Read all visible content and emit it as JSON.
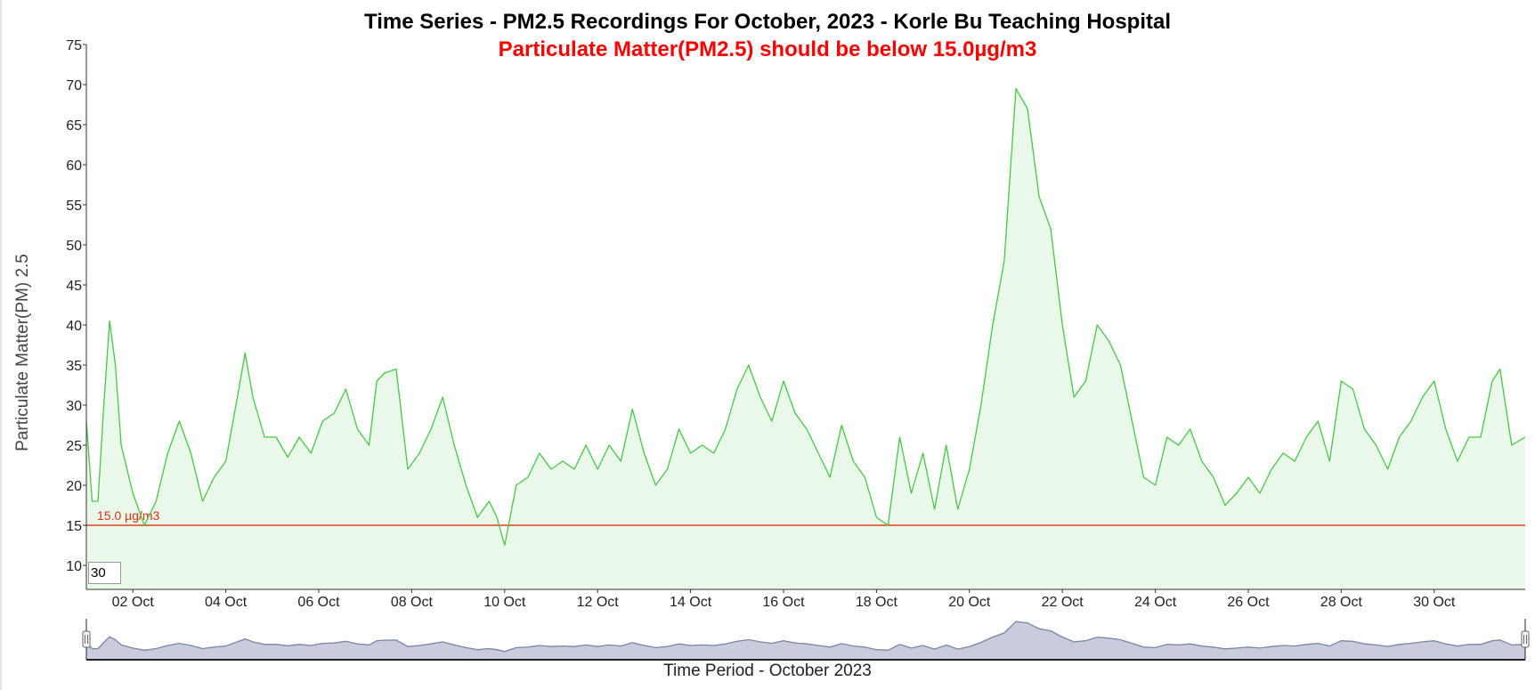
{
  "title": "Time Series - PM2.5 Recordings For October, 2023 - Korle Bu Teaching Hospital",
  "subtitle": "Particulate Matter(PM2.5) should be below 15.0µg/m3",
  "roll_period_value": "30",
  "colors": {
    "line": "#44c944",
    "fill": "#e9f8e9",
    "reference": "#e0401a",
    "subtitle": "#ff0000",
    "navigator_fill": "#c8ccdc",
    "navigator_line": "#7a86a8"
  },
  "chart_data": {
    "type": "area",
    "xlabel": "Time Period - October 2023",
    "ylabel": "Particulate Matter(PM) 2.5",
    "ylim": [
      7,
      75
    ],
    "xlim": [
      "2023-10-01 00:00",
      "2023-10-31 23:00"
    ],
    "yticks": [
      10,
      15,
      20,
      25,
      30,
      35,
      40,
      45,
      50,
      55,
      60,
      65,
      70,
      75
    ],
    "xticks": [
      "02 Oct",
      "04 Oct",
      "06 Oct",
      "08 Oct",
      "10 Oct",
      "12 Oct",
      "14 Oct",
      "16 Oct",
      "18 Oct",
      "20 Oct",
      "22 Oct",
      "24 Oct",
      "26 Oct",
      "28 Oct",
      "30 Oct"
    ],
    "xtick_dates": [
      "2023-10-02",
      "2023-10-04",
      "2023-10-06",
      "2023-10-08",
      "2023-10-10",
      "2023-10-12",
      "2023-10-14",
      "2023-10-16",
      "2023-10-18",
      "2023-10-20",
      "2023-10-22",
      "2023-10-24",
      "2023-10-26",
      "2023-10-28",
      "2023-10-30"
    ],
    "reference_line": {
      "value": 15.0,
      "label": "15.0 µg/m3"
    },
    "grid": false,
    "series": [
      {
        "values": [
          [
            "2023-10-01 00:00",
            28
          ],
          [
            "2023-10-01 03:00",
            18
          ],
          [
            "2023-10-01 06:00",
            18
          ],
          [
            "2023-10-01 09:00",
            30
          ],
          [
            "2023-10-01 12:00",
            40.5
          ],
          [
            "2023-10-01 15:00",
            35
          ],
          [
            "2023-10-01 18:00",
            25
          ],
          [
            "2023-10-02 00:00",
            19
          ],
          [
            "2023-10-02 06:00",
            15
          ],
          [
            "2023-10-02 12:00",
            18
          ],
          [
            "2023-10-02 18:00",
            24
          ],
          [
            "2023-10-03 00:00",
            28
          ],
          [
            "2023-10-03 06:00",
            24
          ],
          [
            "2023-10-03 12:00",
            18
          ],
          [
            "2023-10-03 18:00",
            21
          ],
          [
            "2023-10-04 00:00",
            23
          ],
          [
            "2023-10-04 06:00",
            31
          ],
          [
            "2023-10-04 10:00",
            36.5
          ],
          [
            "2023-10-04 14:00",
            31
          ],
          [
            "2023-10-04 20:00",
            26
          ],
          [
            "2023-10-05 02:00",
            26
          ],
          [
            "2023-10-05 08:00",
            23.5
          ],
          [
            "2023-10-05 14:00",
            26
          ],
          [
            "2023-10-05 20:00",
            24
          ],
          [
            "2023-10-06 02:00",
            28
          ],
          [
            "2023-10-06 08:00",
            29
          ],
          [
            "2023-10-06 14:00",
            32
          ],
          [
            "2023-10-06 20:00",
            27
          ],
          [
            "2023-10-07 02:00",
            25
          ],
          [
            "2023-10-07 06:00",
            33
          ],
          [
            "2023-10-07 10:00",
            34
          ],
          [
            "2023-10-07 16:00",
            34.5
          ],
          [
            "2023-10-07 22:00",
            22
          ],
          [
            "2023-10-08 04:00",
            24
          ],
          [
            "2023-10-08 10:00",
            27
          ],
          [
            "2023-10-08 16:00",
            31
          ],
          [
            "2023-10-08 22:00",
            25
          ],
          [
            "2023-10-09 04:00",
            20
          ],
          [
            "2023-10-09 10:00",
            16
          ],
          [
            "2023-10-09 16:00",
            18
          ],
          [
            "2023-10-09 20:00",
            16
          ],
          [
            "2023-10-10 00:00",
            12.5
          ],
          [
            "2023-10-10 06:00",
            20
          ],
          [
            "2023-10-10 12:00",
            21
          ],
          [
            "2023-10-10 18:00",
            24
          ],
          [
            "2023-10-11 00:00",
            22
          ],
          [
            "2023-10-11 06:00",
            23
          ],
          [
            "2023-10-11 12:00",
            22
          ],
          [
            "2023-10-11 18:00",
            25
          ],
          [
            "2023-10-12 00:00",
            22
          ],
          [
            "2023-10-12 06:00",
            25
          ],
          [
            "2023-10-12 12:00",
            23
          ],
          [
            "2023-10-12 18:00",
            29.5
          ],
          [
            "2023-10-13 00:00",
            24
          ],
          [
            "2023-10-13 06:00",
            20
          ],
          [
            "2023-10-13 12:00",
            22
          ],
          [
            "2023-10-13 18:00",
            27
          ],
          [
            "2023-10-14 00:00",
            24
          ],
          [
            "2023-10-14 06:00",
            25
          ],
          [
            "2023-10-14 12:00",
            24
          ],
          [
            "2023-10-14 18:00",
            27
          ],
          [
            "2023-10-15 00:00",
            32
          ],
          [
            "2023-10-15 06:00",
            35
          ],
          [
            "2023-10-15 12:00",
            31
          ],
          [
            "2023-10-15 18:00",
            28
          ],
          [
            "2023-10-16 00:00",
            33
          ],
          [
            "2023-10-16 06:00",
            29
          ],
          [
            "2023-10-16 12:00",
            27
          ],
          [
            "2023-10-16 18:00",
            24
          ],
          [
            "2023-10-17 00:00",
            21
          ],
          [
            "2023-10-17 06:00",
            27.5
          ],
          [
            "2023-10-17 12:00",
            23
          ],
          [
            "2023-10-17 18:00",
            21
          ],
          [
            "2023-10-18 00:00",
            16
          ],
          [
            "2023-10-18 06:00",
            15
          ],
          [
            "2023-10-18 12:00",
            26
          ],
          [
            "2023-10-18 18:00",
            19
          ],
          [
            "2023-10-19 00:00",
            24
          ],
          [
            "2023-10-19 06:00",
            17
          ],
          [
            "2023-10-19 12:00",
            25
          ],
          [
            "2023-10-19 18:00",
            17
          ],
          [
            "2023-10-20 00:00",
            22
          ],
          [
            "2023-10-20 06:00",
            30
          ],
          [
            "2023-10-20 12:00",
            40
          ],
          [
            "2023-10-20 18:00",
            48
          ],
          [
            "2023-10-21 00:00",
            69.5
          ],
          [
            "2023-10-21 06:00",
            67
          ],
          [
            "2023-10-21 12:00",
            56
          ],
          [
            "2023-10-21 18:00",
            52
          ],
          [
            "2023-10-22 00:00",
            40
          ],
          [
            "2023-10-22 06:00",
            31
          ],
          [
            "2023-10-22 12:00",
            33
          ],
          [
            "2023-10-22 18:00",
            40
          ],
          [
            "2023-10-23 00:00",
            38
          ],
          [
            "2023-10-23 06:00",
            35
          ],
          [
            "2023-10-23 12:00",
            28
          ],
          [
            "2023-10-23 18:00",
            21
          ],
          [
            "2023-10-24 00:00",
            20
          ],
          [
            "2023-10-24 06:00",
            26
          ],
          [
            "2023-10-24 12:00",
            25
          ],
          [
            "2023-10-24 18:00",
            27
          ],
          [
            "2023-10-25 00:00",
            23
          ],
          [
            "2023-10-25 06:00",
            21
          ],
          [
            "2023-10-25 12:00",
            17.5
          ],
          [
            "2023-10-25 18:00",
            19
          ],
          [
            "2023-10-26 00:00",
            21
          ],
          [
            "2023-10-26 06:00",
            19
          ],
          [
            "2023-10-26 12:00",
            22
          ],
          [
            "2023-10-26 18:00",
            24
          ],
          [
            "2023-10-27 00:00",
            23
          ],
          [
            "2023-10-27 06:00",
            26
          ],
          [
            "2023-10-27 12:00",
            28
          ],
          [
            "2023-10-27 18:00",
            23
          ],
          [
            "2023-10-28 00:00",
            33
          ],
          [
            "2023-10-28 06:00",
            32
          ],
          [
            "2023-10-28 12:00",
            27
          ],
          [
            "2023-10-28 18:00",
            25
          ],
          [
            "2023-10-29 00:00",
            22
          ],
          [
            "2023-10-29 06:00",
            26
          ],
          [
            "2023-10-29 12:00",
            28
          ],
          [
            "2023-10-29 18:00",
            31
          ],
          [
            "2023-10-30 00:00",
            33
          ],
          [
            "2023-10-30 06:00",
            27
          ],
          [
            "2023-10-30 12:00",
            23
          ],
          [
            "2023-10-30 18:00",
            26
          ],
          [
            "2023-10-31 00:00",
            26
          ],
          [
            "2023-10-31 06:00",
            33
          ],
          [
            "2023-10-31 10:00",
            34.5
          ],
          [
            "2023-10-31 16:00",
            25
          ],
          [
            "2023-10-31 23:00",
            26
          ]
        ]
      }
    ]
  }
}
